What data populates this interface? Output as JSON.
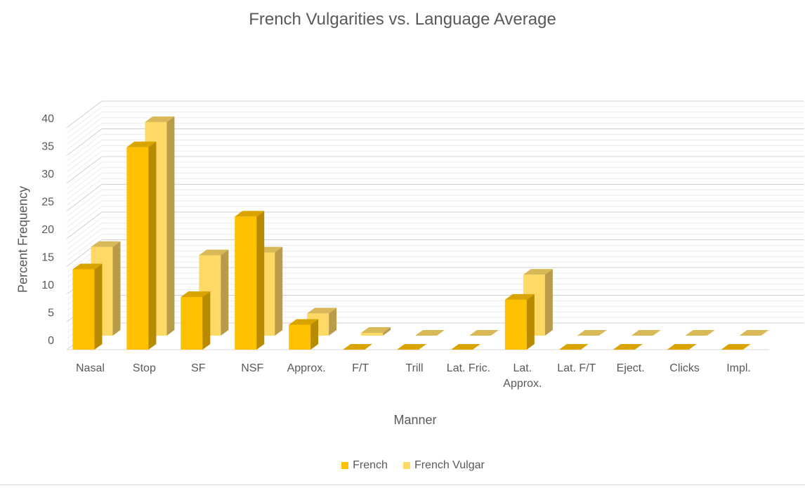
{
  "chart_data": {
    "type": "bar",
    "title": "French Vulgarities vs. Language Average",
    "xlabel": "Manner",
    "ylabel": "Percent Frequency",
    "ylim": [
      0,
      40
    ],
    "yticks": [
      0,
      5,
      10,
      15,
      20,
      25,
      30,
      35,
      40
    ],
    "categories": [
      "Nasal",
      "Stop",
      "SF",
      "NSF",
      "Approx.",
      "F/T",
      "Trill",
      "Lat. Fric.",
      "Lat. Approx.",
      "Lat. F/T",
      "Eject.",
      "Clicks",
      "Impl."
    ],
    "series": [
      {
        "name": "French",
        "values": [
          14.5,
          36.5,
          9.5,
          24,
          4.5,
          0,
          0,
          0,
          9,
          0,
          0,
          0,
          0
        ],
        "color": "#FFC000"
      },
      {
        "name": "French Vulgar",
        "values": [
          16,
          38.5,
          14.5,
          15,
          4,
          0.5,
          0,
          0,
          11,
          0,
          0,
          0,
          0
        ],
        "color": "#FFD966"
      }
    ],
    "grid": true,
    "legend_position": "bottom"
  }
}
